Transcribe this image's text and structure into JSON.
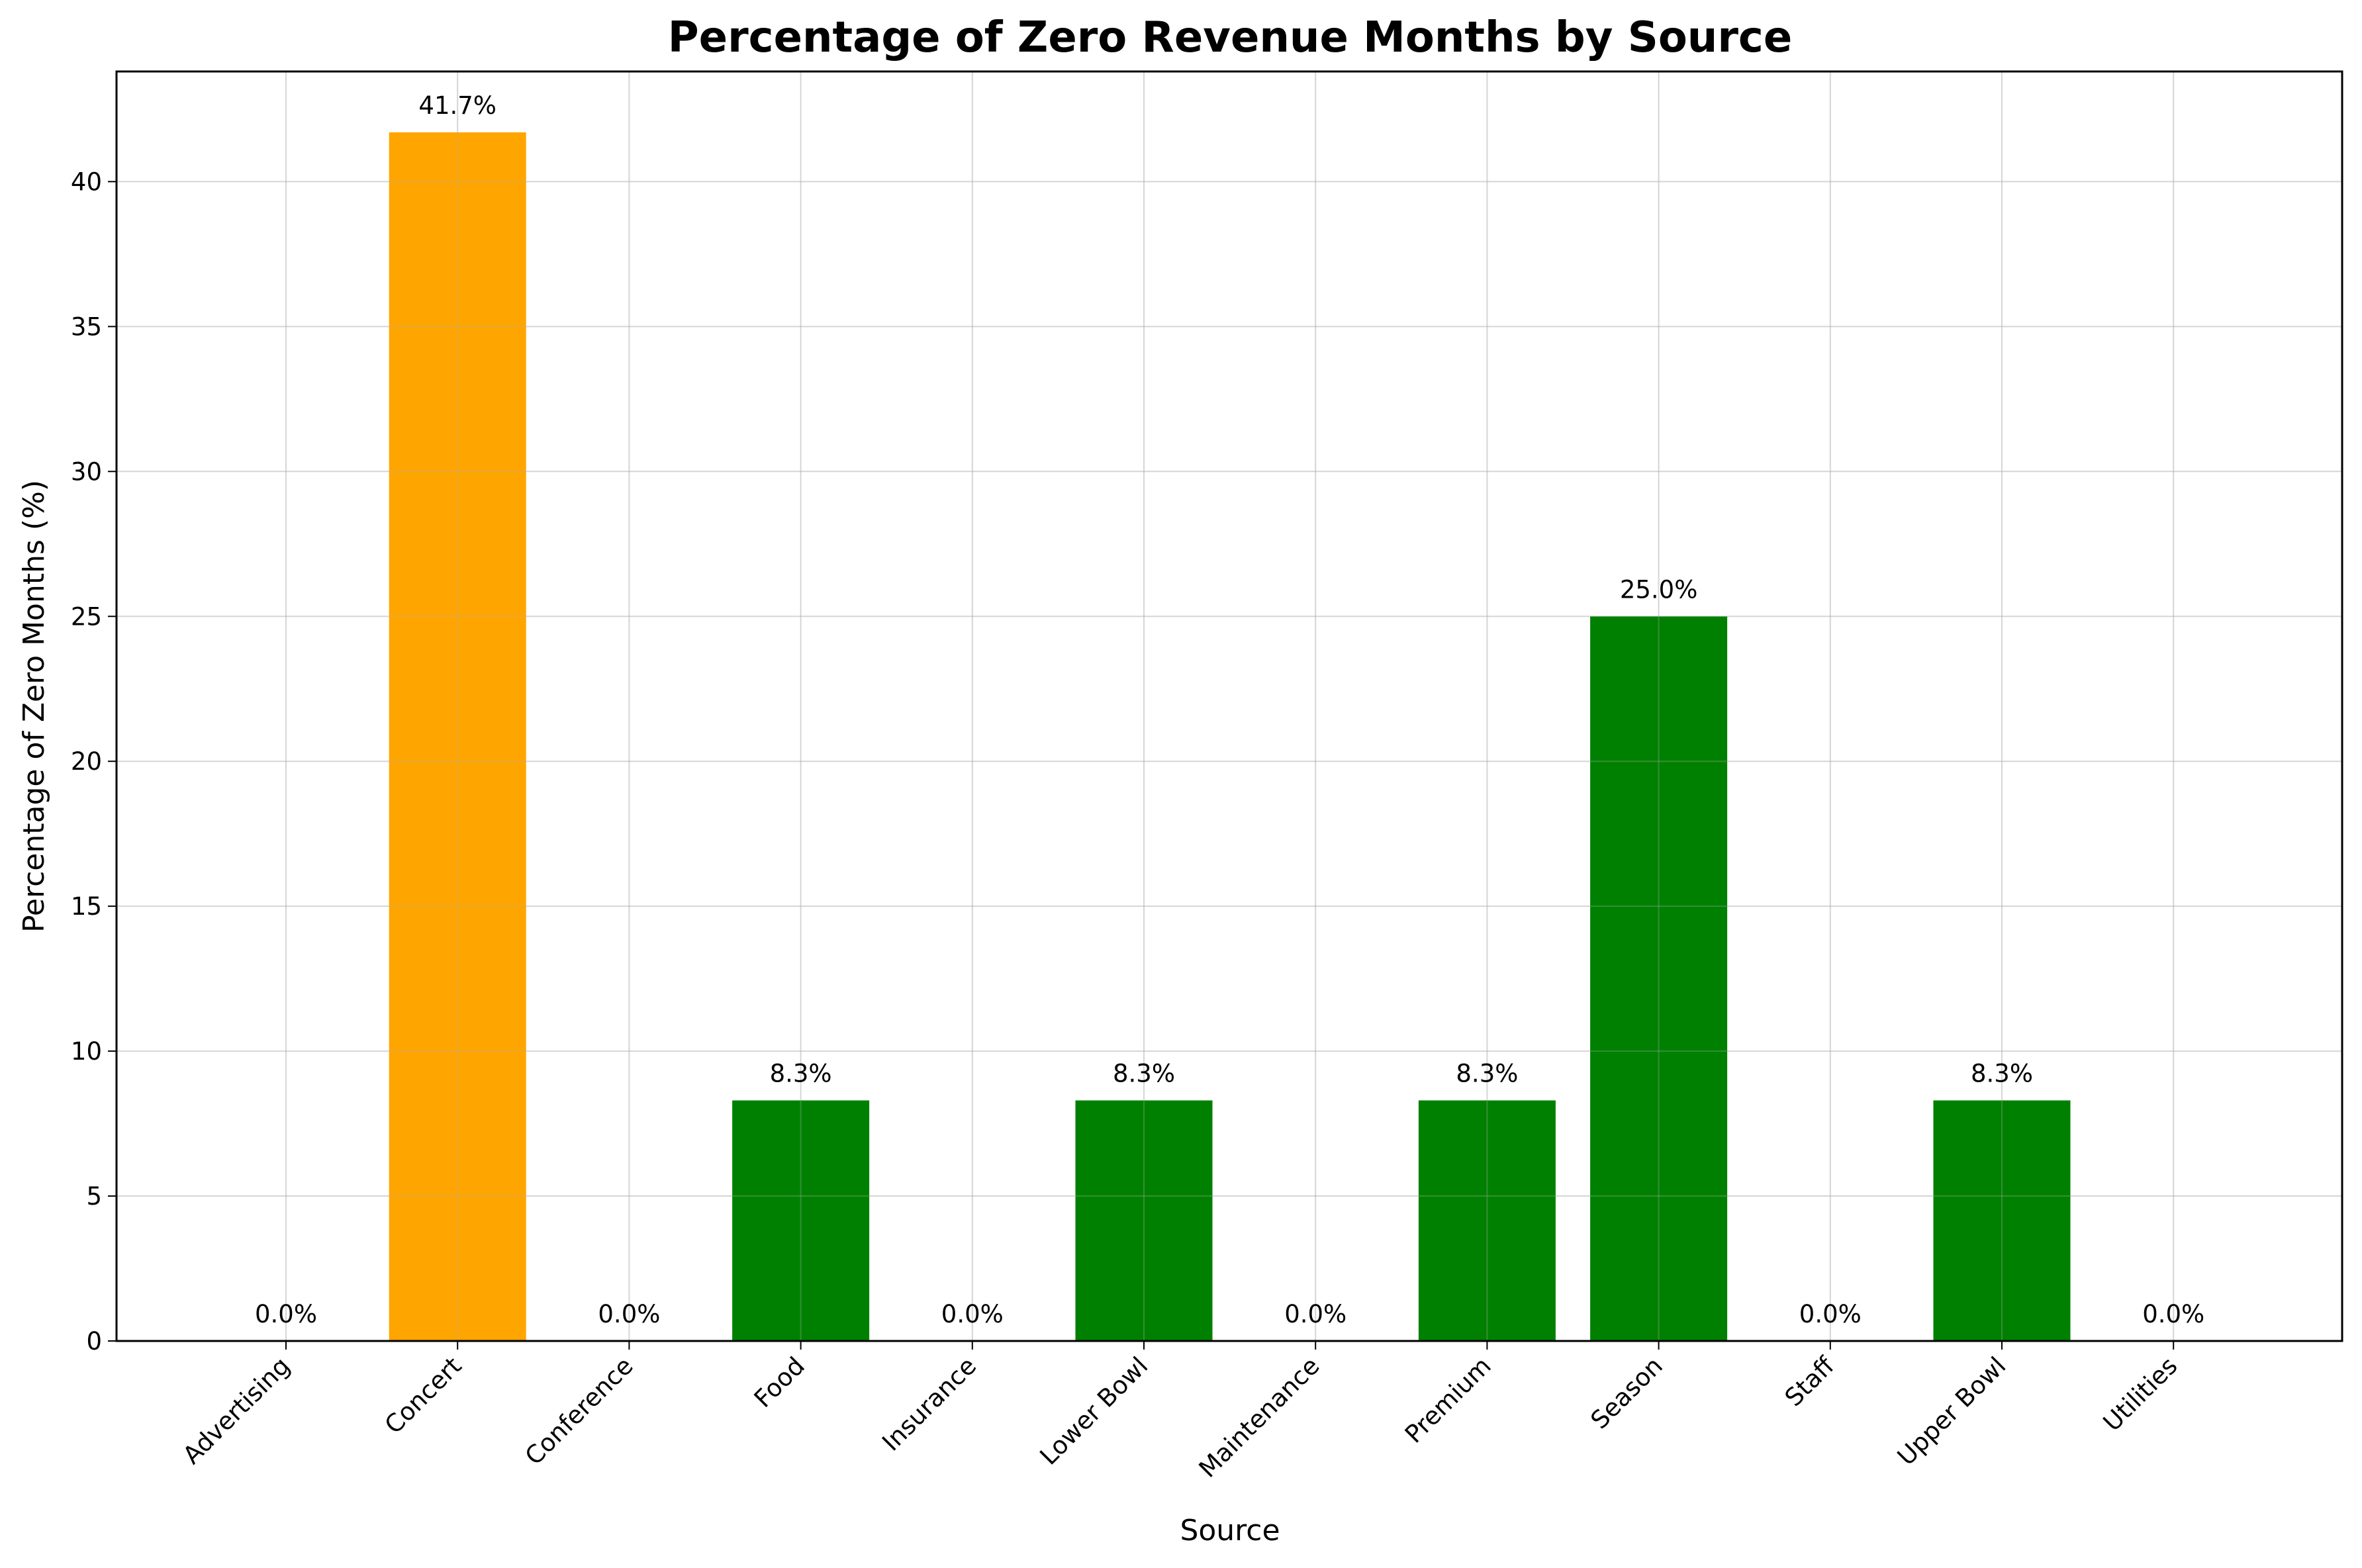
{
  "chart_data": {
    "type": "bar",
    "title": "Percentage of Zero Revenue Months by Source",
    "xlabel": "Source",
    "ylabel": "Percentage of Zero Months (%)",
    "categories": [
      "Advertising",
      "Concert",
      "Conference",
      "Food",
      "Insurance",
      "Lower Bowl",
      "Maintenance",
      "Premium",
      "Season",
      "Staff",
      "Upper Bowl",
      "Utilities"
    ],
    "values": [
      0.0,
      41.7,
      0.0,
      8.3,
      0.0,
      8.3,
      0.0,
      8.3,
      25.0,
      0.0,
      8.3,
      0.0
    ],
    "value_labels": [
      "0.0%",
      "41.7%",
      "0.0%",
      "8.3%",
      "0.0%",
      "8.3%",
      "0.0%",
      "8.3%",
      "25.0%",
      "0.0%",
      "8.3%",
      "0.0%"
    ],
    "bar_colors": [
      "#008000",
      "#FFA500",
      "#008000",
      "#008000",
      "#008000",
      "#008000",
      "#008000",
      "#008000",
      "#008000",
      "#008000",
      "#008000",
      "#008000"
    ],
    "yticks": [
      0,
      5,
      10,
      15,
      20,
      25,
      30,
      35,
      40
    ],
    "ylim": [
      0,
      43.8
    ],
    "grid": true,
    "legend": "none"
  }
}
